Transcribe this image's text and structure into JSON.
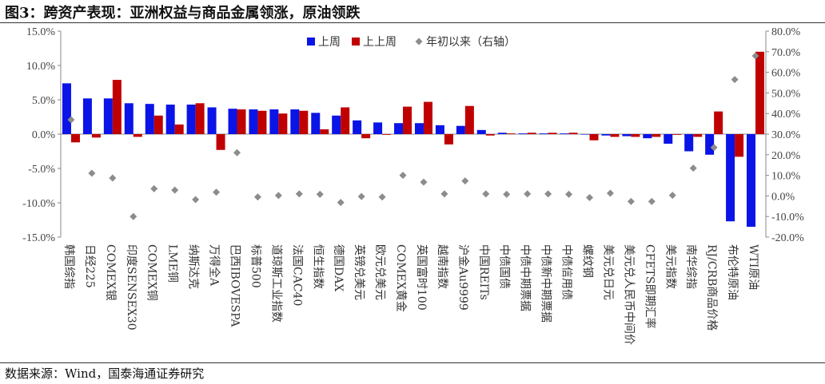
{
  "figure": {
    "title": "图3：跨资产表现：亚洲权益与商品金属领涨，原油领跌",
    "source": "数据来源：Wind，国泰海通证券研究"
  },
  "chart_data": {
    "type": "bar",
    "categories": [
      "韩国综指",
      "日经225",
      "COMEX银",
      "印度SENSEX30",
      "COMEX铜",
      "LME铜",
      "纳斯达克",
      "万得全A",
      "巴西IBOVESPA",
      "标普500",
      "道琼斯工业指数",
      "法国CAC40",
      "恒生指数",
      "德国DAX",
      "英镑兑美元",
      "欧元兑美元",
      "COMEX黄金",
      "英国富时100",
      "越南指数",
      "沪金Au9999",
      "中国REITs",
      "中债国债",
      "中债中期票据",
      "中债新中期票据",
      "中债信用债",
      "螺纹钢",
      "美元兑日元",
      "美元兑人民币中间价",
      "CFETS即期汇率",
      "美元指数",
      "南华综指",
      "RJ/CRB商品价格",
      "布伦特原油",
      "WTI原油"
    ],
    "series": [
      {
        "name": "上周",
        "axis": "left",
        "color": "#0a14e6",
        "values": [
          7.4,
          5.2,
          5.2,
          4.5,
          4.4,
          4.3,
          4.3,
          3.9,
          3.7,
          3.6,
          3.6,
          3.6,
          3.1,
          2.7,
          2.0,
          1.7,
          1.6,
          1.6,
          1.3,
          1.2,
          0.6,
          0.2,
          0.1,
          0.1,
          0.1,
          0.0,
          -0.2,
          -0.3,
          -0.6,
          -1.4,
          -2.5,
          -3.0,
          -12.7,
          -13.5
        ]
      },
      {
        "name": "上上周",
        "axis": "left",
        "color": "#c00000",
        "values": [
          -1.2,
          -0.5,
          7.9,
          -0.4,
          2.7,
          1.4,
          4.5,
          -2.3,
          3.6,
          3.4,
          3.0,
          3.4,
          0.7,
          3.9,
          -0.6,
          -0.1,
          4.0,
          4.7,
          -1.5,
          4.1,
          -0.2,
          0.1,
          0.2,
          0.2,
          0.2,
          -0.9,
          -0.4,
          -0.4,
          -0.4,
          -0.1,
          -0.4,
          3.3,
          -3.3,
          12.0
        ]
      },
      {
        "name": "年初以来（右轴）",
        "axis": "right",
        "color": "#8c8c8c",
        "marker": "diamond",
        "values": [
          37.0,
          11.0,
          8.7,
          -10.0,
          3.5,
          2.8,
          -1.8,
          1.8,
          21.0,
          -0.5,
          0.2,
          1.0,
          0.8,
          -3.2,
          -0.3,
          -0.5,
          10.0,
          6.7,
          1.0,
          7.3,
          1.0,
          0.8,
          1.0,
          1.0,
          0.8,
          -0.8,
          1.3,
          -2.7,
          -2.7,
          0.3,
          13.5,
          23.5,
          56.5,
          68.0
        ]
      }
    ],
    "y_left": {
      "min": -15,
      "max": 15,
      "step": 5,
      "format": "percent1"
    },
    "y_right": {
      "min": -20,
      "max": 80,
      "step": 10,
      "format": "percent1"
    },
    "legend": {
      "position": "top-center"
    },
    "grid": false
  }
}
